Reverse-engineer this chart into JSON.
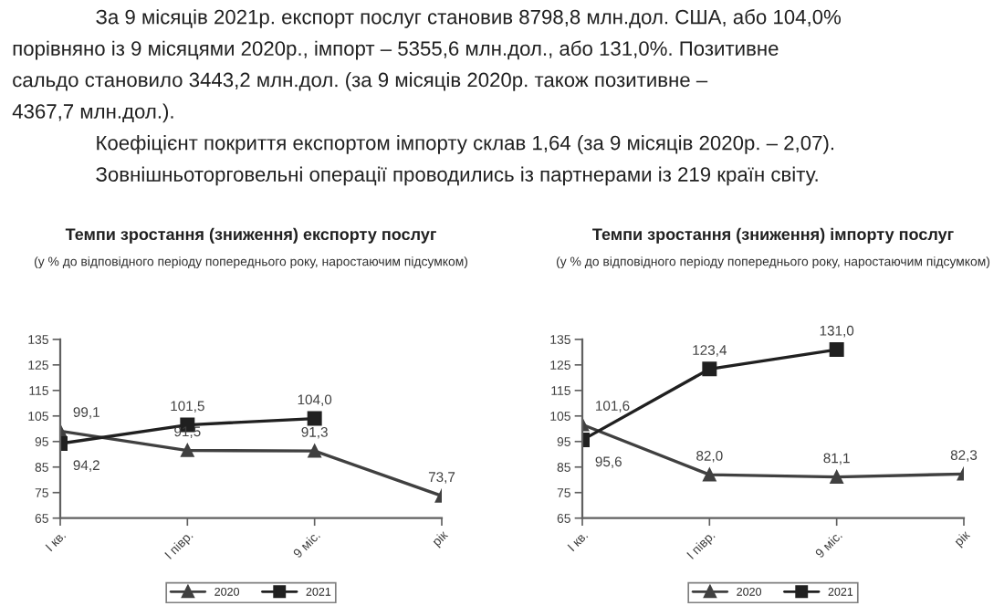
{
  "chart_data": [
    {
      "type": "other",
      "annotations": [
        "За 9 місяців 2021р. експорт послуг становив 8798,8 млн.дол. США, або 104,0%",
        "порівняно із 9 місяцями 2020р., імпорт – 5355,6 млн.дол., або 131,0%. Позитивне",
        "сальдо становило 3443,2 млн.дол. (за 9 місяців 2020р. також позитивне –",
        "4367,7 млн.дол.).",
        "Коефіцієнт покриття експортом імпорту склав 1,64 (за 9 місяців 2020р. – 2,07).",
        "Зовнішньоторговельні операції проводились із партнерами із 219 країн світу."
      ]
    },
    {
      "type": "line",
      "title": "Темпи зростання (зниження) експорту послуг",
      "subtitle": "(у % до відповідного періоду попереднього року, наростаючим підсумком)",
      "categories": [
        "І кв.",
        "І півр.",
        "9 міс.",
        "рік"
      ],
      "ylim": [
        65,
        135
      ],
      "yticks": [
        65,
        75,
        85,
        95,
        105,
        115,
        125,
        135
      ],
      "grid": false,
      "legend": "bottom",
      "line_style": "solid",
      "series": [
        {
          "name": "2020",
          "color": "#404040",
          "marker": "triangle",
          "values": [
            99.1,
            91.5,
            91.3,
            73.7
          ],
          "value_labels": [
            "99,1",
            "91,5",
            "91,3",
            "73,7"
          ]
        },
        {
          "name": "2021",
          "color": "#202020",
          "marker": "square",
          "values": [
            94.2,
            101.5,
            104.0,
            null
          ],
          "value_labels": [
            "94,2",
            "101,5",
            "104,0",
            null
          ]
        }
      ]
    },
    {
      "type": "line",
      "title": "Темпи зростання (зниження) імпорту послуг",
      "subtitle": "(у % до відповідного періоду попереднього року, наростаючим підсумком)",
      "categories": [
        "І кв.",
        "І півр.",
        "9 міс.",
        "рік"
      ],
      "ylim": [
        65,
        135
      ],
      "yticks": [
        65,
        75,
        85,
        95,
        105,
        115,
        125,
        135
      ],
      "grid": false,
      "legend": "bottom",
      "line_style": "solid",
      "series": [
        {
          "name": "2020",
          "color": "#404040",
          "marker": "triangle",
          "values": [
            101.6,
            82.0,
            81.1,
            82.3
          ],
          "value_labels": [
            "101,6",
            "82,0",
            "81,1",
            "82,3"
          ]
        },
        {
          "name": "2021",
          "color": "#202020",
          "marker": "square",
          "values": [
            95.6,
            123.4,
            131.0,
            null
          ],
          "value_labels": [
            "95,6",
            "123,4",
            "131,0",
            null
          ]
        }
      ]
    }
  ]
}
